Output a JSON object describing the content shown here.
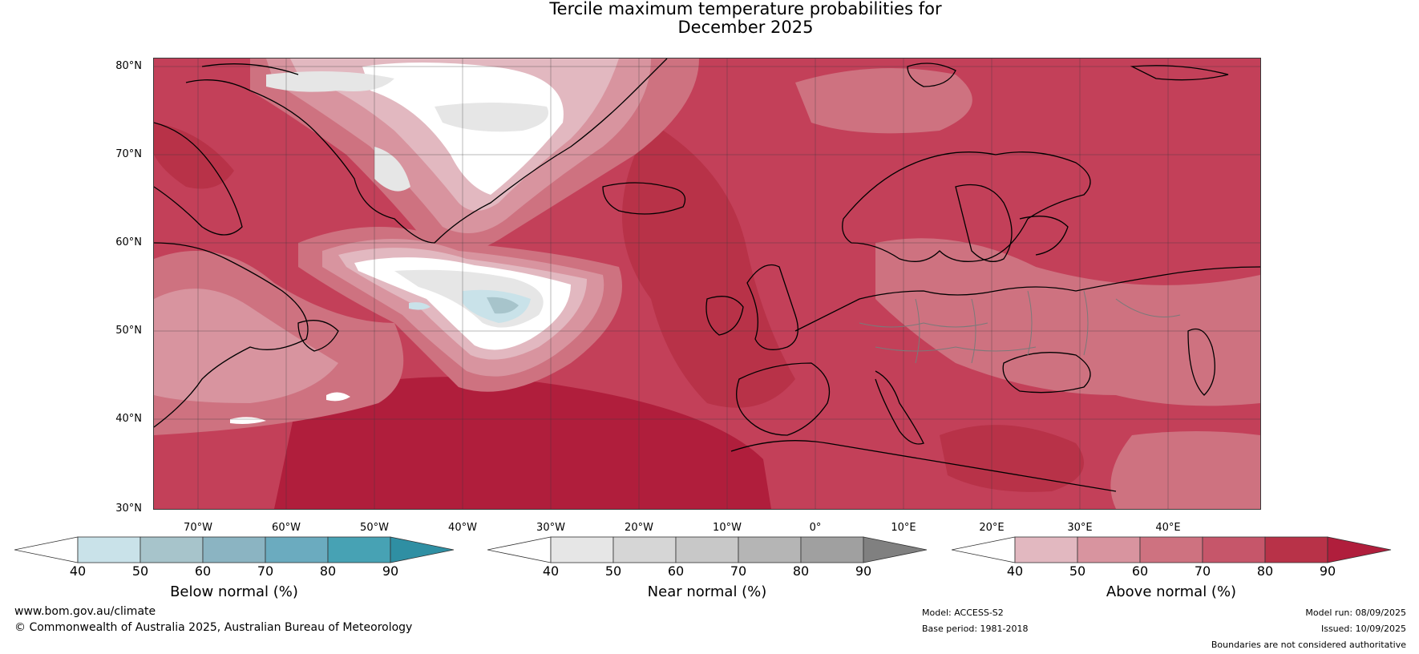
{
  "title_line1": "Tercile maximum temperature probabilities for",
  "title_line2": "December 2025",
  "lat_labels": [
    "80°N",
    "70°N",
    "60°N",
    "50°N",
    "40°N",
    "30°N"
  ],
  "lat_values": [
    80,
    70,
    60,
    50,
    40,
    30
  ],
  "lon_labels": [
    "70°W",
    "60°W",
    "50°W",
    "40°W",
    "30°W",
    "20°W",
    "10°W",
    "0°",
    "10°E",
    "20°E",
    "30°E",
    "40°E"
  ],
  "lon_values": [
    -70,
    -60,
    -50,
    -40,
    -30,
    -20,
    -10,
    0,
    10,
    20,
    30,
    40
  ],
  "map_extent": {
    "lon_min": -75,
    "lon_max": 50,
    "lat_min": 30,
    "lat_max": 81
  },
  "colorbars": [
    {
      "label": "Below normal (%)",
      "ticks": [
        "40",
        "50",
        "60",
        "70",
        "80",
        "90"
      ],
      "colors": [
        "#ffffff",
        "#c9e2e9",
        "#a7c4cb",
        "#8bb4c2",
        "#6babbf",
        "#47a2b4",
        "#2f8fa3"
      ]
    },
    {
      "label": "Near normal (%)",
      "ticks": [
        "40",
        "50",
        "60",
        "70",
        "80",
        "90"
      ],
      "colors": [
        "#ffffff",
        "#e6e6e6",
        "#d6d6d6",
        "#c8c8c8",
        "#b5b5b5",
        "#a0a0a0",
        "#808080"
      ]
    },
    {
      "label": "Above normal (%)",
      "ticks": [
        "40",
        "50",
        "60",
        "70",
        "80",
        "90"
      ],
      "colors": [
        "#ffffff",
        "#e2b8c0",
        "#d8949f",
        "#ce7280",
        "#c6566a",
        "#b83248",
        "#b01e3c"
      ]
    }
  ],
  "footer": {
    "website": "www.bom.gov.au/climate",
    "copyright": "© Commonwealth of Australia 2025, Australian Bureau of Meteorology",
    "model": "Model: ACCESS-S2",
    "base_period": "Base period: 1981-2018",
    "model_run": "Model run: 08/09/2025",
    "issued": "Issued: 10/09/2025",
    "disclaimer": "Boundaries are not considered authoritative"
  }
}
